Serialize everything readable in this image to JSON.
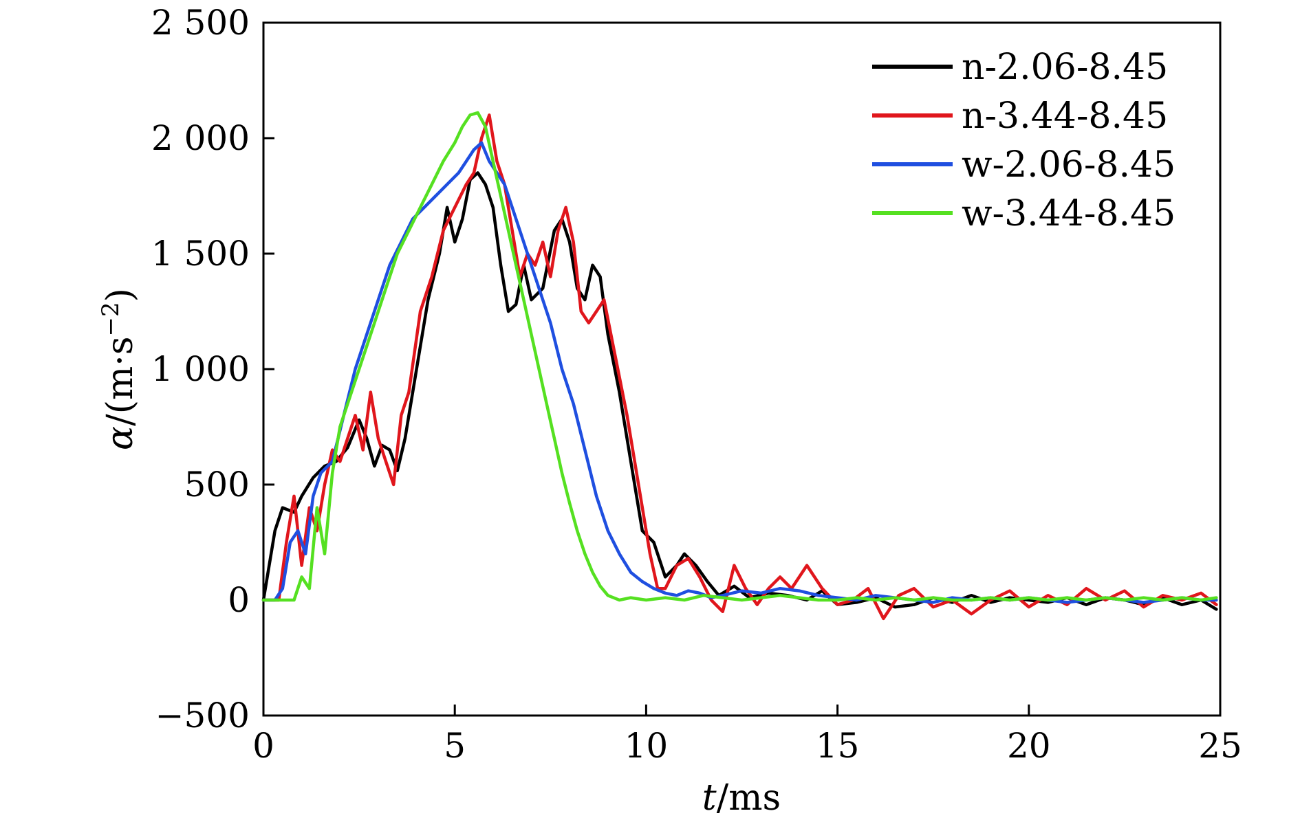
{
  "chart_data": {
    "type": "line",
    "xlabel": {
      "var": "t",
      "unit": "/ms"
    },
    "ylabel": {
      "var": "α",
      "unit": "/(m·s",
      "exp": "−2",
      "close": ")"
    },
    "xlim": [
      0,
      25
    ],
    "ylim": [
      -500,
      2500
    ],
    "xticks": [
      0,
      5,
      10,
      15,
      20,
      25
    ],
    "xtick_labels": [
      "0",
      "5",
      "10",
      "15",
      "20",
      "25"
    ],
    "yticks": [
      -500,
      0,
      500,
      1000,
      1500,
      2000,
      2500
    ],
    "ytick_labels": [
      "−500",
      "0",
      "500",
      "1 000",
      "1 500",
      "2 000",
      "2 500"
    ],
    "grid": false,
    "legend_position": "top-right",
    "series": [
      {
        "name": "n-2.06-8.45",
        "color": "#000000",
        "x": [
          0,
          0.3,
          0.5,
          0.8,
          1.0,
          1.3,
          1.6,
          1.9,
          2.2,
          2.5,
          2.7,
          2.9,
          3.1,
          3.3,
          3.5,
          3.7,
          4.0,
          4.3,
          4.6,
          4.8,
          5.0,
          5.2,
          5.4,
          5.6,
          5.8,
          6.0,
          6.2,
          6.4,
          6.6,
          6.8,
          7.0,
          7.3,
          7.6,
          7.8,
          8.0,
          8.2,
          8.4,
          8.6,
          8.8,
          9.0,
          9.3,
          9.6,
          9.9,
          10.2,
          10.5,
          10.8,
          11.0,
          11.3,
          11.6,
          11.9,
          12.3,
          12.7,
          13.2,
          13.7,
          14.2,
          14.6,
          15.0,
          15.5,
          16.0,
          16.5,
          17.0,
          17.5,
          18.0,
          18.5,
          19.0,
          19.5,
          20.0,
          20.5,
          21.0,
          21.5,
          22.0,
          22.5,
          23.0,
          23.5,
          24.0,
          24.5,
          24.9
        ],
        "y": [
          0,
          300,
          400,
          380,
          450,
          530,
          580,
          600,
          660,
          780,
          700,
          580,
          670,
          650,
          560,
          700,
          1000,
          1300,
          1500,
          1700,
          1550,
          1650,
          1820,
          1850,
          1800,
          1700,
          1450,
          1250,
          1280,
          1450,
          1300,
          1350,
          1600,
          1650,
          1550,
          1350,
          1300,
          1450,
          1400,
          1150,
          900,
          600,
          300,
          250,
          100,
          150,
          200,
          150,
          80,
          20,
          60,
          10,
          30,
          20,
          0,
          40,
          -20,
          -10,
          10,
          -30,
          -20,
          10,
          -10,
          20,
          -10,
          10,
          0,
          -10,
          10,
          -20,
          10,
          0,
          -20,
          10,
          -20,
          0,
          -40
        ]
      },
      {
        "name": "n-3.44-8.45",
        "color": "#e0161c",
        "x": [
          0,
          0.4,
          0.6,
          0.8,
          1.0,
          1.2,
          1.4,
          1.6,
          1.8,
          2.0,
          2.2,
          2.4,
          2.6,
          2.8,
          3.0,
          3.2,
          3.4,
          3.6,
          3.8,
          4.1,
          4.4,
          4.7,
          5.0,
          5.3,
          5.5,
          5.7,
          5.9,
          6.1,
          6.3,
          6.5,
          6.7,
          6.9,
          7.1,
          7.3,
          7.5,
          7.7,
          7.9,
          8.1,
          8.3,
          8.5,
          8.7,
          8.9,
          9.2,
          9.5,
          9.8,
          10.1,
          10.3,
          10.5,
          10.8,
          11.1,
          11.4,
          11.7,
          12.0,
          12.3,
          12.6,
          12.9,
          13.2,
          13.5,
          13.8,
          14.2,
          14.6,
          15.0,
          15.4,
          15.8,
          16.2,
          16.6,
          17.0,
          17.5,
          18.0,
          18.5,
          19.0,
          19.5,
          20.0,
          20.5,
          21.0,
          21.5,
          22.0,
          22.5,
          23.0,
          23.5,
          24.0,
          24.5,
          24.9
        ],
        "y": [
          0,
          0,
          250,
          450,
          150,
          400,
          300,
          500,
          650,
          600,
          700,
          800,
          650,
          900,
          700,
          600,
          500,
          800,
          900,
          1250,
          1400,
          1600,
          1700,
          1800,
          1850,
          2000,
          2100,
          1900,
          1800,
          1600,
          1400,
          1500,
          1450,
          1550,
          1400,
          1600,
          1700,
          1550,
          1250,
          1200,
          1250,
          1300,
          1050,
          800,
          500,
          200,
          50,
          50,
          150,
          180,
          100,
          0,
          -50,
          150,
          50,
          -20,
          50,
          100,
          50,
          150,
          50,
          -20,
          0,
          50,
          -80,
          20,
          50,
          -30,
          0,
          -60,
          0,
          40,
          -30,
          20,
          -20,
          50,
          0,
          40,
          -30,
          20,
          0,
          30,
          -20
        ]
      },
      {
        "name": "w-2.06-8.45",
        "color": "#1f4fe0",
        "x": [
          0,
          0.3,
          0.5,
          0.7,
          0.9,
          1.1,
          1.3,
          1.5,
          1.8,
          2.1,
          2.4,
          2.7,
          3.0,
          3.3,
          3.6,
          3.9,
          4.2,
          4.5,
          4.8,
          5.1,
          5.3,
          5.5,
          5.7,
          5.9,
          6.1,
          6.3,
          6.5,
          6.7,
          6.9,
          7.2,
          7.5,
          7.8,
          8.1,
          8.4,
          8.7,
          9.0,
          9.3,
          9.6,
          9.9,
          10.2,
          10.5,
          10.8,
          11.1,
          11.4,
          11.7,
          12.0,
          12.5,
          13.0,
          13.5,
          14.0,
          14.5,
          15.0,
          15.5,
          16.0,
          16.5,
          17.0,
          17.5,
          18.0,
          18.5,
          19.0,
          19.5,
          20.0,
          20.5,
          21.0,
          21.5,
          22.0,
          22.5,
          23.0,
          23.5,
          24.0,
          24.5,
          24.9
        ],
        "y": [
          0,
          0,
          50,
          250,
          300,
          200,
          450,
          550,
          600,
          800,
          1000,
          1150,
          1300,
          1450,
          1550,
          1650,
          1700,
          1750,
          1800,
          1850,
          1900,
          1950,
          1980,
          1900,
          1850,
          1800,
          1700,
          1600,
          1500,
          1350,
          1200,
          1000,
          850,
          650,
          450,
          300,
          200,
          120,
          80,
          50,
          30,
          20,
          40,
          30,
          10,
          20,
          40,
          30,
          50,
          40,
          20,
          10,
          0,
          20,
          10,
          0,
          -10,
          10,
          0,
          10,
          0,
          10,
          0,
          -10,
          0,
          10,
          0,
          -10,
          0,
          10,
          0,
          0
        ]
      },
      {
        "name": "w-3.44-8.45",
        "color": "#55e021",
        "x": [
          0,
          0.5,
          0.8,
          1.0,
          1.2,
          1.4,
          1.6,
          1.8,
          2.0,
          2.3,
          2.6,
          2.9,
          3.2,
          3.5,
          3.8,
          4.1,
          4.4,
          4.7,
          5.0,
          5.2,
          5.4,
          5.6,
          5.8,
          6.0,
          6.2,
          6.4,
          6.6,
          6.8,
          7.0,
          7.2,
          7.4,
          7.6,
          7.8,
          8.0,
          8.2,
          8.4,
          8.6,
          8.8,
          9.0,
          9.3,
          9.6,
          10.0,
          10.5,
          11.0,
          11.5,
          12.0,
          12.5,
          13.0,
          13.5,
          14.0,
          14.5,
          15.0,
          15.5,
          16.0,
          16.5,
          17.0,
          17.5,
          18.0,
          18.5,
          19.0,
          19.5,
          20.0,
          20.5,
          21.0,
          21.5,
          22.0,
          22.5,
          23.0,
          23.5,
          24.0,
          24.5,
          24.9
        ],
        "y": [
          0,
          0,
          0,
          100,
          50,
          400,
          200,
          550,
          750,
          900,
          1050,
          1200,
          1350,
          1500,
          1600,
          1700,
          1800,
          1900,
          1980,
          2050,
          2100,
          2110,
          2050,
          1900,
          1750,
          1600,
          1450,
          1300,
          1150,
          1000,
          850,
          700,
          550,
          420,
          300,
          200,
          120,
          60,
          20,
          0,
          10,
          0,
          10,
          0,
          20,
          10,
          0,
          10,
          20,
          10,
          0,
          0,
          10,
          0,
          10,
          0,
          10,
          0,
          0,
          10,
          0,
          10,
          0,
          10,
          0,
          10,
          0,
          10,
          0,
          10,
          0,
          10
        ]
      }
    ]
  }
}
